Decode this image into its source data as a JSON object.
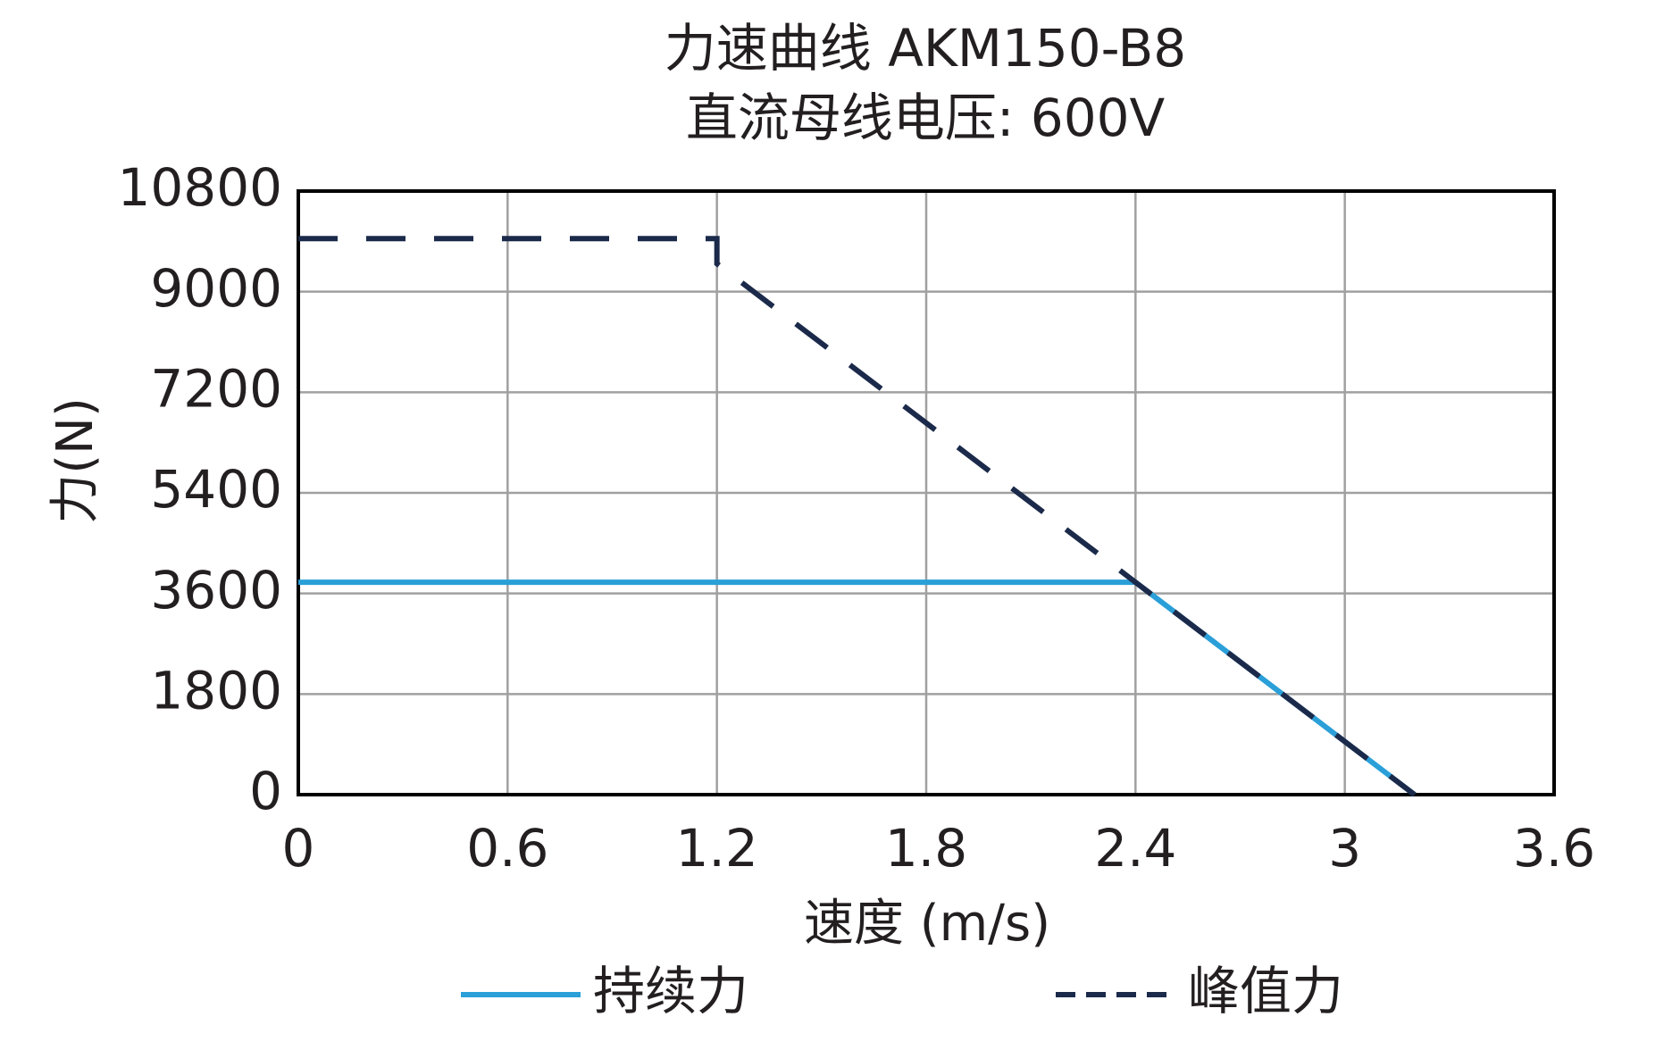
{
  "chart_data": {
    "type": "line",
    "title": "力速曲线 AKM150-B8",
    "subtitle": "直流母线电压: 600V",
    "x_label": "速度 (m/s)",
    "y_label": "力(N)",
    "xlim": [
      0,
      3.6
    ],
    "xticks": [
      0,
      0.6,
      1.2,
      1.8,
      2.4,
      3,
      3.6
    ],
    "ylim": [
      0,
      10800
    ],
    "yticks": [
      0,
      1800,
      3600,
      5400,
      7200,
      9000,
      10800
    ],
    "grid": true,
    "legend": "bottom",
    "series": [
      {
        "name": "持续力",
        "color": "#2a9fd8",
        "style": "solid",
        "x": [
          0,
          2.4,
          3.2
        ],
        "values": [
          3800,
          3800,
          0
        ]
      },
      {
        "name": "峰值力",
        "color": "#1b2a4a",
        "style": "dashed",
        "x": [
          0,
          1.2,
          1.2,
          2.4,
          3.2
        ],
        "values": [
          9950,
          9950,
          9500,
          3800,
          0
        ]
      }
    ]
  }
}
